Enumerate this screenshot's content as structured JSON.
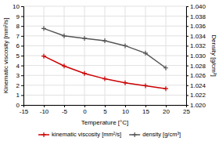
{
  "chart_data": {
    "type": "line",
    "x": [
      -10,
      -5,
      0,
      5,
      10,
      15,
      20
    ],
    "xlabel": "Temperature [°C]",
    "ylabel": "Kinematic viscosity [mm²/s]",
    "y2label": "Density [g/cm³]",
    "series": [
      {
        "name": "kinematic viscosity [mm²/s]",
        "color": "#cc0000",
        "marker": "plus",
        "values": [
          4.95,
          3.95,
          3.2,
          2.65,
          2.25,
          1.95,
          1.65
        ]
      },
      {
        "name": "density [g/cm³]",
        "color": "#555555",
        "marker": "plus",
        "axis": "y2",
        "values": [
          1.0355,
          1.034,
          1.0335,
          1.033,
          1.032,
          1.0305,
          1.0275
        ]
      }
    ],
    "xlim": [
      -15,
      25
    ],
    "xticks": [
      -15,
      -10,
      -5,
      0,
      5,
      10,
      15,
      20,
      25
    ],
    "ylim": [
      0,
      10
    ],
    "yticks": [
      0,
      1,
      2,
      3,
      4,
      5,
      6,
      7,
      8,
      9,
      10
    ],
    "y2lim": [
      1.02,
      1.04
    ],
    "y2ticks": [
      {
        "value": 1.02,
        "label": "1.020"
      },
      1.022,
      1.024,
      1.026,
      1.028,
      {
        "value": 1.03,
        "label": "1.030"
      },
      1.032,
      1.034,
      1.036,
      1.038,
      {
        "value": 1.04,
        "label": "1.040"
      }
    ],
    "grid": true,
    "legend": "bottom"
  }
}
